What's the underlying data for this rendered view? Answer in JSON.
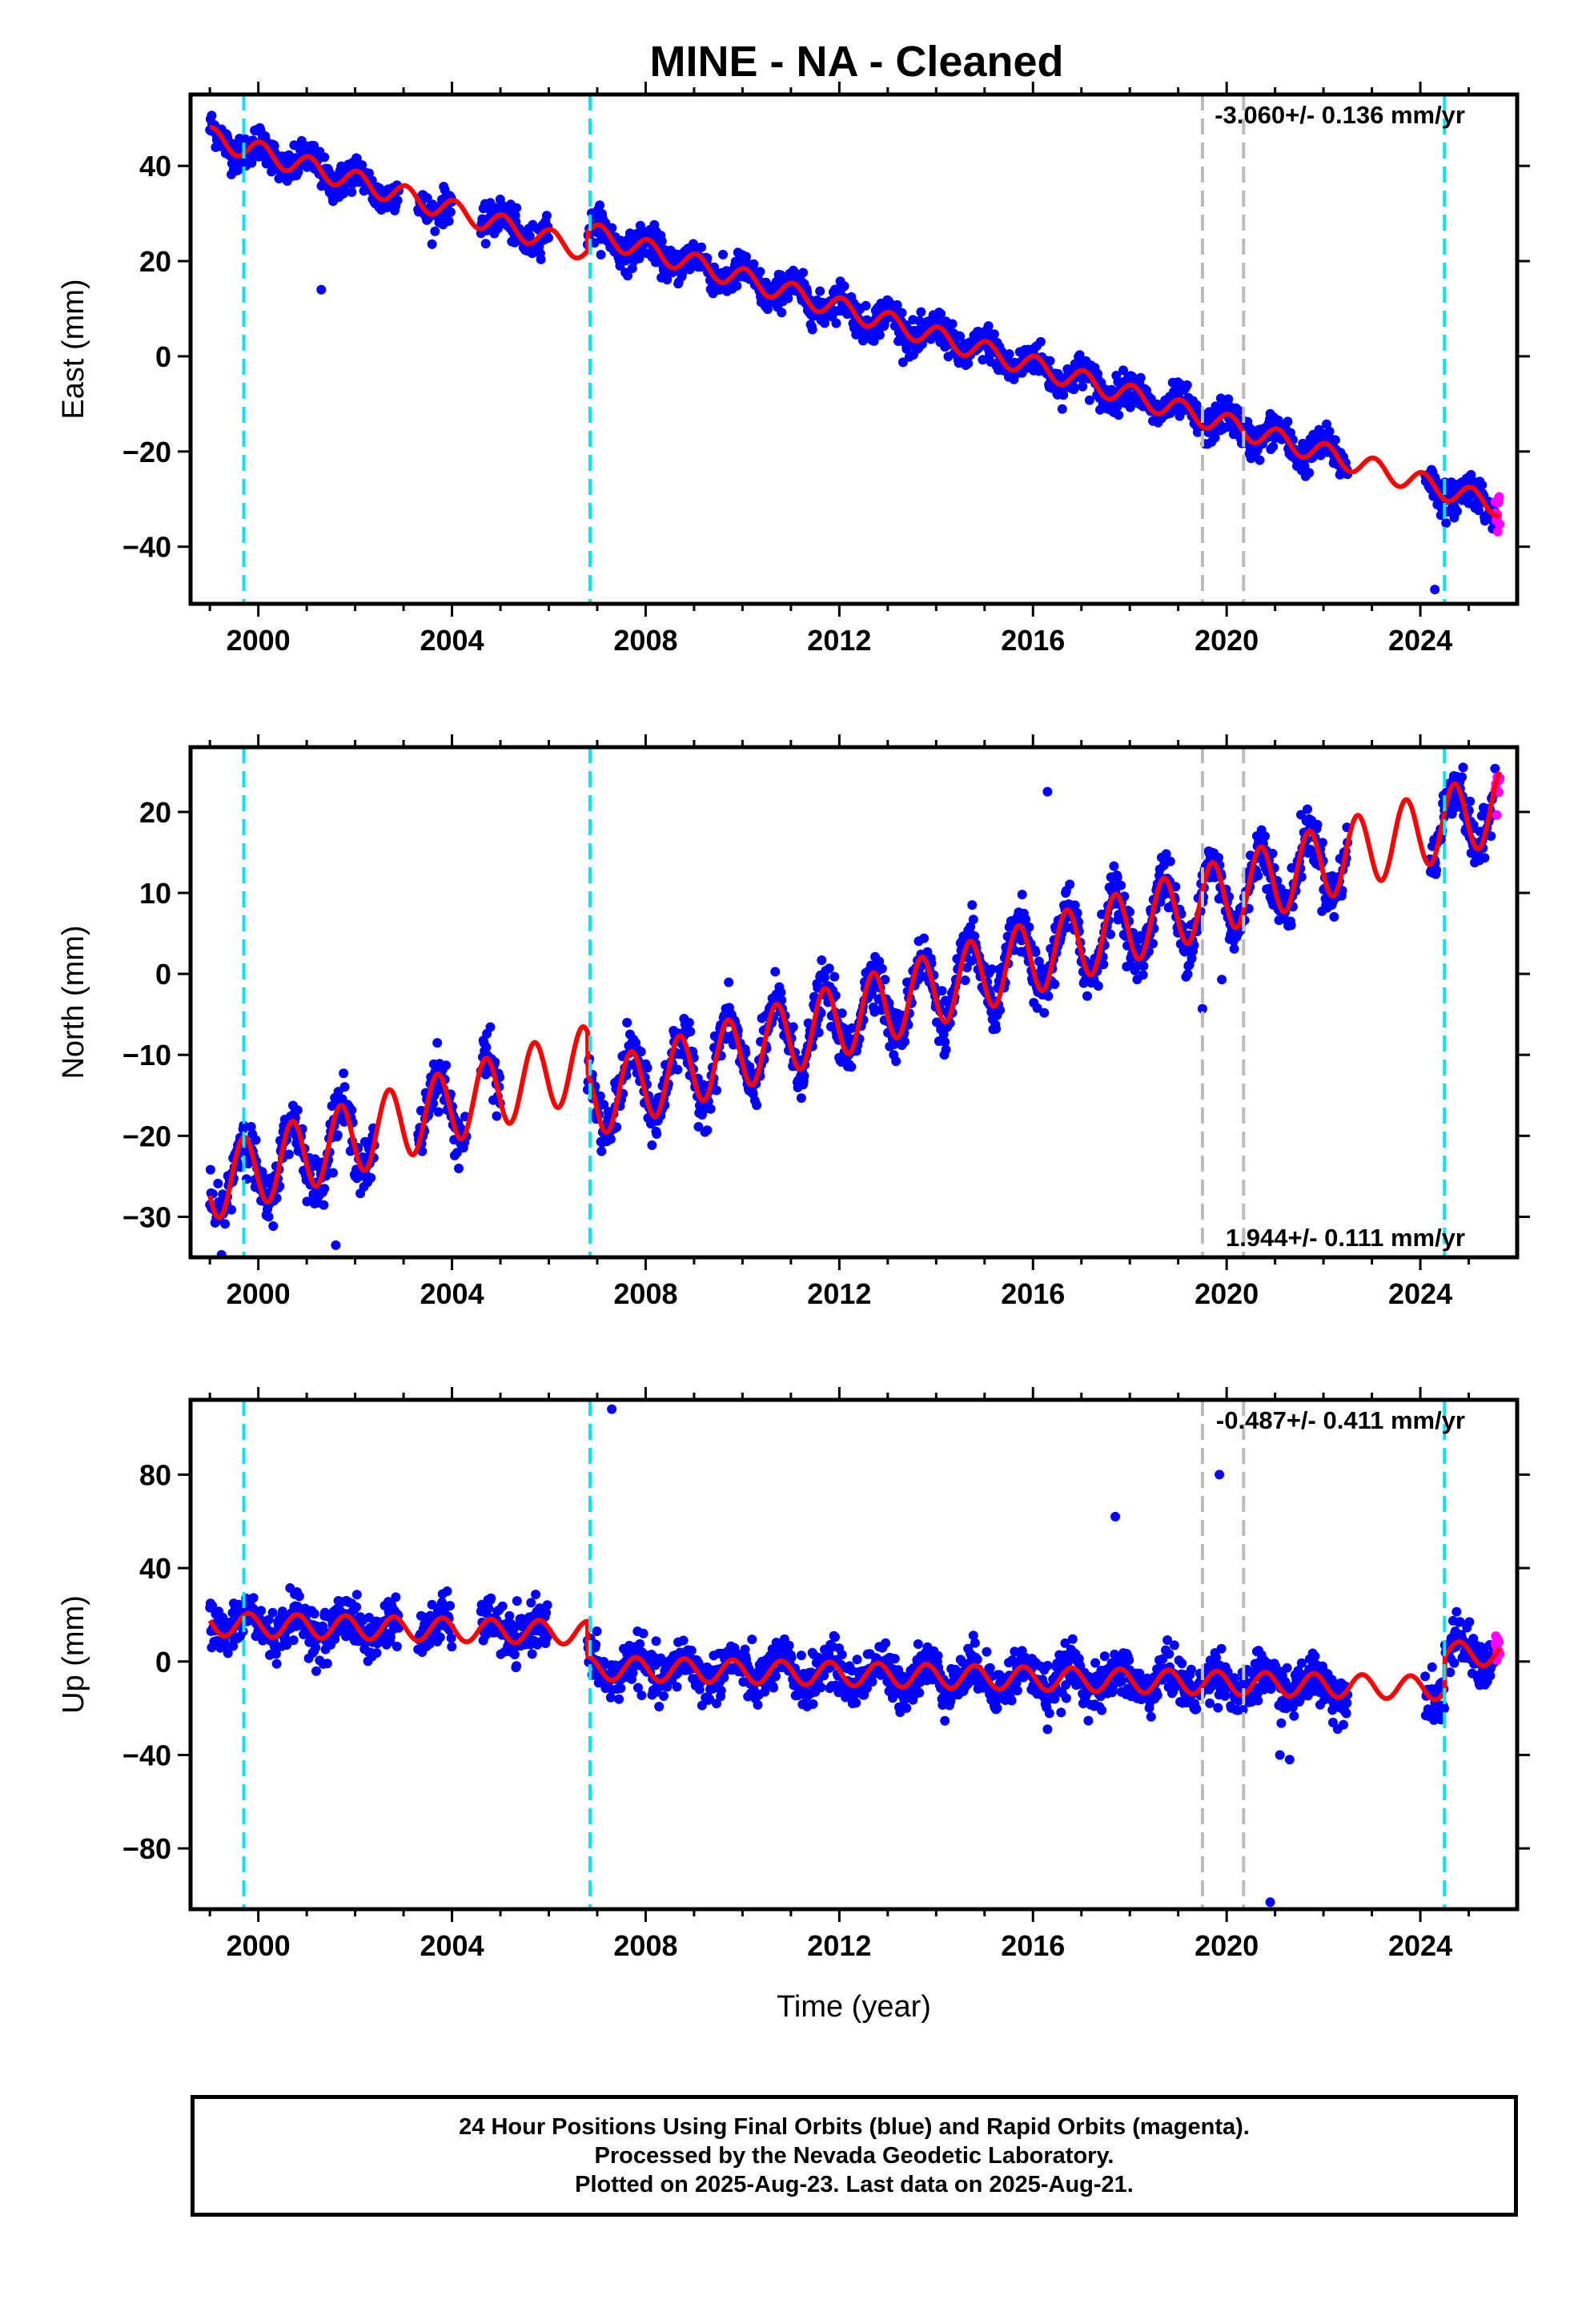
{
  "title": "MINE  - NA - Cleaned",
  "footer": {
    "line1": "24 Hour Positions Using Final Orbits (blue) and Rapid Orbits (magenta).",
    "line2": "Processed by the Nevada Geodetic Laboratory.",
    "line3": "Plotted on 2025-Aug-23. Last data on 2025-Aug-21."
  },
  "colors": {
    "final": "#0000ff",
    "rapid": "#ff00ff",
    "model": "#ff0000",
    "antenna_change": "#00e5ee",
    "gap_marker": "#bbbbbb"
  },
  "chart_data": [
    {
      "type": "scatter",
      "component": "East",
      "ylabel": "East (mm)",
      "xlabel": "",
      "xlim": [
        1998.6,
        2026.0
      ],
      "ylim": [
        -52,
        55
      ],
      "xticks": [
        "2000",
        "2004",
        "2008",
        "2012",
        "2016",
        "2020",
        "2024"
      ],
      "yticks": [
        "−40",
        "−20",
        "0",
        "20",
        "40"
      ],
      "ytick_values": [
        -40,
        -20,
        0,
        20,
        40
      ],
      "rate_label": "-3.060+/- 0.136 mm/yr",
      "rate_position": "top-right",
      "trend": {
        "t0": 1999.0,
        "y0": 46,
        "rate": -3.06,
        "annual_amplitude": 2.2,
        "phase": 0.2
      },
      "noise": 1.8,
      "offsets": [
        {
          "year": 2006.8,
          "shift": 4.0
        }
      ],
      "data_ranges": [
        [
          1999.0,
          2002.9
        ],
        [
          2003.3,
          2004.0
        ],
        [
          2004.6,
          2006.0
        ],
        [
          2006.8,
          2022.5
        ],
        [
          2024.1,
          2025.55
        ]
      ],
      "rapid_range": [
        2025.55,
        2025.64
      ],
      "outliers": [
        {
          "x": 2001.3,
          "y": 14
        },
        {
          "x": 2024.3,
          "y": -49
        }
      ],
      "antenna_changes": [
        1999.7,
        2006.85,
        2024.5
      ],
      "gap_markers": [
        2019.5,
        2020.35
      ]
    },
    {
      "type": "scatter",
      "component": "North",
      "ylabel": "North (mm)",
      "xlabel": "",
      "xlim": [
        1998.6,
        2026.0
      ],
      "ylim": [
        -35,
        28
      ],
      "xticks": [
        "2000",
        "2004",
        "2008",
        "2012",
        "2016",
        "2020",
        "2024"
      ],
      "yticks": [
        "−30",
        "−20",
        "−10",
        "0",
        "10",
        "20"
      ],
      "ytick_values": [
        -30,
        -20,
        -10,
        0,
        10,
        20
      ],
      "rate_label": "1.944+/- 0.111 mm/yr",
      "rate_position": "bottom-right",
      "trend": {
        "t0": 1999.0,
        "y0": -26,
        "rate": 1.944,
        "annual_amplitude": 4.5,
        "phase": 0.55
      },
      "noise": 1.6,
      "offsets": [
        {
          "year": 2006.8,
          "shift": -5.0
        }
      ],
      "data_ranges": [
        [
          1999.0,
          2002.4
        ],
        [
          2003.3,
          2004.3
        ],
        [
          2004.6,
          2005.0
        ],
        [
          2006.8,
          2022.5
        ],
        [
          2024.2,
          2025.55
        ]
      ],
      "rapid_range": [
        2025.55,
        2025.64
      ],
      "outliers": [
        {
          "x": 2016.3,
          "y": 22.5
        },
        {
          "x": 2019.5,
          "y": -4.3
        },
        {
          "x": 2019.9,
          "y": -0.7
        },
        {
          "x": 2001.6,
          "y": -33.5
        }
      ],
      "antenna_changes": [
        1999.7,
        2006.85,
        2024.5
      ],
      "gap_markers": [
        2019.5,
        2020.35
      ]
    },
    {
      "type": "scatter",
      "component": "Up",
      "ylabel": "Up (mm)",
      "xlabel": "Time (year)",
      "xlim": [
        1998.6,
        2026.0
      ],
      "ylim": [
        -106,
        112
      ],
      "xticks": [
        "2000",
        "2004",
        "2008",
        "2012",
        "2016",
        "2020",
        "2024"
      ],
      "yticks": [
        "−80",
        "−40",
        "0",
        "40",
        "80"
      ],
      "ytick_values": [
        -80,
        -40,
        0,
        40,
        80
      ],
      "rate_label": "-0.487+/- 0.411 mm/yr",
      "rate_position": "top-right",
      "trend": {
        "t0": 1999.0,
        "y0": 16,
        "rate": -0.487,
        "annual_amplitude": 5.0,
        "phase": 0.45
      },
      "noise": 5.0,
      "offsets": [
        {
          "year": 2006.8,
          "shift": -15.0
        },
        {
          "year": 2024.5,
          "shift": 15.0
        }
      ],
      "data_ranges": [
        [
          1999.0,
          2002.9
        ],
        [
          2003.3,
          2004.0
        ],
        [
          2004.6,
          2006.0
        ],
        [
          2006.8,
          2022.5
        ],
        [
          2024.1,
          2025.55
        ]
      ],
      "rapid_range": [
        2025.55,
        2025.64
      ],
      "outliers": [
        {
          "x": 2007.3,
          "y": 108
        },
        {
          "x": 2017.7,
          "y": 62
        },
        {
          "x": 2019.85,
          "y": 80
        },
        {
          "x": 2020.9,
          "y": -103
        },
        {
          "x": 2021.1,
          "y": -40
        },
        {
          "x": 2021.3,
          "y": -42
        },
        {
          "x": 2016.3,
          "y": -29
        }
      ],
      "antenna_changes": [
        1999.7,
        2006.85,
        2024.5
      ],
      "gap_markers": [
        2019.5,
        2020.35
      ]
    }
  ]
}
